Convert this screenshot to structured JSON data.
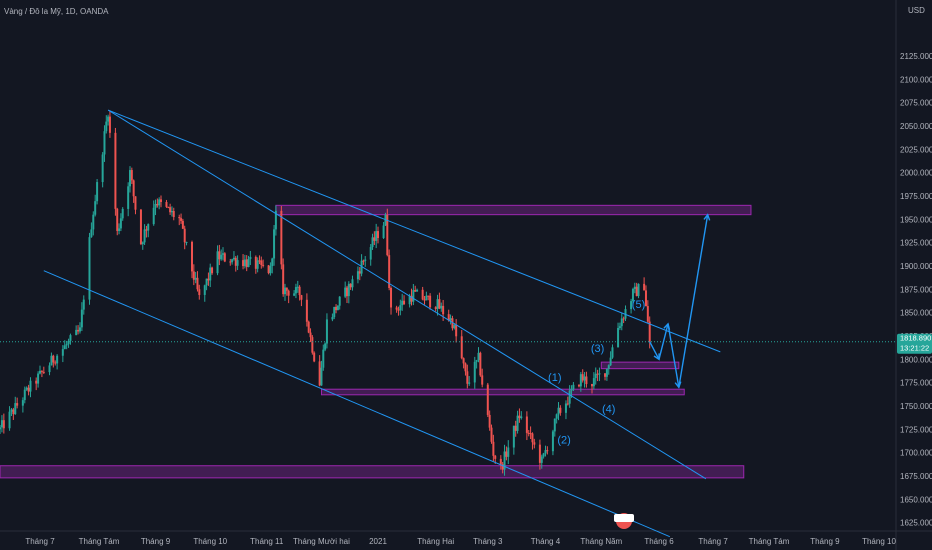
{
  "header": {
    "symbol_title": "Vàng / Đô la Mỹ, 1D, OANDA",
    "currency": "USD"
  },
  "price_tag": {
    "price": "1818.890",
    "countdown": "13:21:22"
  },
  "colors": {
    "background": "#131722",
    "up_candle": "#26a69a",
    "down_candle": "#ef5350",
    "trendline": "#2196f3",
    "zone_fill": "#9c27b0",
    "axis_text": "#b2b5be",
    "price_tag_bg": "#26a69a"
  },
  "chart_data": {
    "type": "candlestick",
    "y_axis": {
      "range": [
        1615,
        2140
      ],
      "ticks": [
        1625,
        1650,
        1675,
        1700,
        1725,
        1750,
        1775,
        1800,
        1825,
        1850,
        1875,
        1900,
        1925,
        1950,
        1975,
        2000,
        2025,
        2050,
        2075,
        2100,
        2125
      ],
      "tick_labels": [
        "1625.000",
        "1650.000",
        "1675.000",
        "1700.000",
        "1725.000",
        "1750.000",
        "1775.000",
        "1800.000",
        "1825.000",
        "1850.000",
        "1875.000",
        "1900.000",
        "1925.000",
        "1950.000",
        "1975.000",
        "2000.000",
        "2025.000",
        "2050.000",
        "2075.000",
        "2100.000",
        "2125.000"
      ],
      "current_price": 1818.89
    },
    "x_axis": {
      "labels": [
        "Tháng 7",
        "Tháng Tám",
        "Tháng 9",
        "Tháng 10",
        "Tháng 11",
        "Tháng Mười hai",
        "2021",
        "Tháng Hai",
        "Tháng 3",
        "Tháng 4",
        "Tháng Năm",
        "Tháng 6",
        "Tháng 7",
        "Tháng Tám",
        "Tháng 9",
        "Tháng 10"
      ],
      "dates": [
        "2020-07-01",
        "2020-08-01",
        "2020-09-01",
        "2020-10-01",
        "2020-11-01",
        "2020-12-01",
        "2021-01-01",
        "2021-02-01",
        "2021-03-01",
        "2021-04-01",
        "2021-05-01",
        "2021-06-01",
        "2021-07-01",
        "2021-08-01",
        "2021-09-01",
        "2021-10-01"
      ]
    },
    "price_path": [
      {
        "date": "2020-06-10",
        "price": 1725
      },
      {
        "date": "2020-06-25",
        "price": 1768
      },
      {
        "date": "2020-07-10",
        "price": 1805
      },
      {
        "date": "2020-07-22",
        "price": 1830
      },
      {
        "date": "2020-07-28",
        "price": 1945
      },
      {
        "date": "2020-08-06",
        "price": 2067
      },
      {
        "date": "2020-08-11",
        "price": 1935
      },
      {
        "date": "2020-08-18",
        "price": 2000
      },
      {
        "date": "2020-08-24",
        "price": 1925
      },
      {
        "date": "2020-09-01",
        "price": 1970
      },
      {
        "date": "2020-09-14",
        "price": 1950
      },
      {
        "date": "2020-09-25",
        "price": 1865
      },
      {
        "date": "2020-10-05",
        "price": 1910
      },
      {
        "date": "2020-10-20",
        "price": 1905
      },
      {
        "date": "2020-11-03",
        "price": 1895
      },
      {
        "date": "2020-11-06",
        "price": 1955
      },
      {
        "date": "2020-11-10",
        "price": 1875
      },
      {
        "date": "2020-11-20",
        "price": 1870
      },
      {
        "date": "2020-11-30",
        "price": 1775
      },
      {
        "date": "2020-12-04",
        "price": 1840
      },
      {
        "date": "2020-12-17",
        "price": 1880
      },
      {
        "date": "2021-01-05",
        "price": 1950
      },
      {
        "date": "2021-01-08",
        "price": 1850
      },
      {
        "date": "2021-01-20",
        "price": 1870
      },
      {
        "date": "2021-02-01",
        "price": 1860
      },
      {
        "date": "2021-02-10",
        "price": 1840
      },
      {
        "date": "2021-02-18",
        "price": 1775
      },
      {
        "date": "2021-02-24",
        "price": 1800
      },
      {
        "date": "2021-03-04",
        "price": 1700
      },
      {
        "date": "2021-03-08",
        "price": 1683
      },
      {
        "date": "2021-03-18",
        "price": 1740
      },
      {
        "date": "2021-03-30",
        "price": 1690
      },
      {
        "date": "2021-04-08",
        "price": 1742
      },
      {
        "date": "2021-04-20",
        "price": 1780
      },
      {
        "date": "2021-04-26",
        "price": 1775
      },
      {
        "date": "2021-05-04",
        "price": 1790
      },
      {
        "date": "2021-05-10",
        "price": 1835
      },
      {
        "date": "2021-05-18",
        "price": 1870
      },
      {
        "date": "2021-05-24",
        "price": 1880
      },
      {
        "date": "2021-05-27",
        "price": 1818.89
      }
    ],
    "horizontal_zones": [
      {
        "from_date": "2020-11-06",
        "to_date": "2021-07-22",
        "low": 1955,
        "high": 1965
      },
      {
        "from_date": "2020-12-01",
        "to_date": "2021-06-15",
        "low": 1762,
        "high": 1768
      },
      {
        "from_date": "2021-05-01",
        "to_date": "2021-06-12",
        "low": 1790,
        "high": 1797
      },
      {
        "from_date": "2020-06-10",
        "to_date": "2021-07-18",
        "low": 1673,
        "high": 1686
      }
    ],
    "trendlines": [
      {
        "from": {
          "date": "2020-08-06",
          "price": 2067
        },
        "to": {
          "date": "2021-07-05",
          "price": 1808
        }
      },
      {
        "from": {
          "date": "2020-08-06",
          "price": 2067
        },
        "to": {
          "date": "2021-06-27",
          "price": 1672
        }
      },
      {
        "from": {
          "date": "2020-07-03",
          "price": 1895
        },
        "to": {
          "date": "2021-06-07",
          "price": 1610
        }
      }
    ],
    "projection_path": [
      {
        "date": "2021-05-27",
        "price": 1818.89
      },
      {
        "date": "2021-06-01",
        "price": 1800
      },
      {
        "date": "2021-06-06",
        "price": 1838
      },
      {
        "date": "2021-06-12",
        "price": 1770
      },
      {
        "date": "2021-06-28",
        "price": 1955
      }
    ],
    "wave_labels": [
      {
        "label": "(1)",
        "date": "2021-04-06",
        "price": 1777
      },
      {
        "label": "(2)",
        "date": "2021-04-11",
        "price": 1710
      },
      {
        "label": "(3)",
        "date": "2021-04-29",
        "price": 1808
      },
      {
        "label": "(4)",
        "date": "2021-05-05",
        "price": 1743
      },
      {
        "label": "(5)",
        "date": "2021-05-21",
        "price": 1855
      }
    ]
  }
}
